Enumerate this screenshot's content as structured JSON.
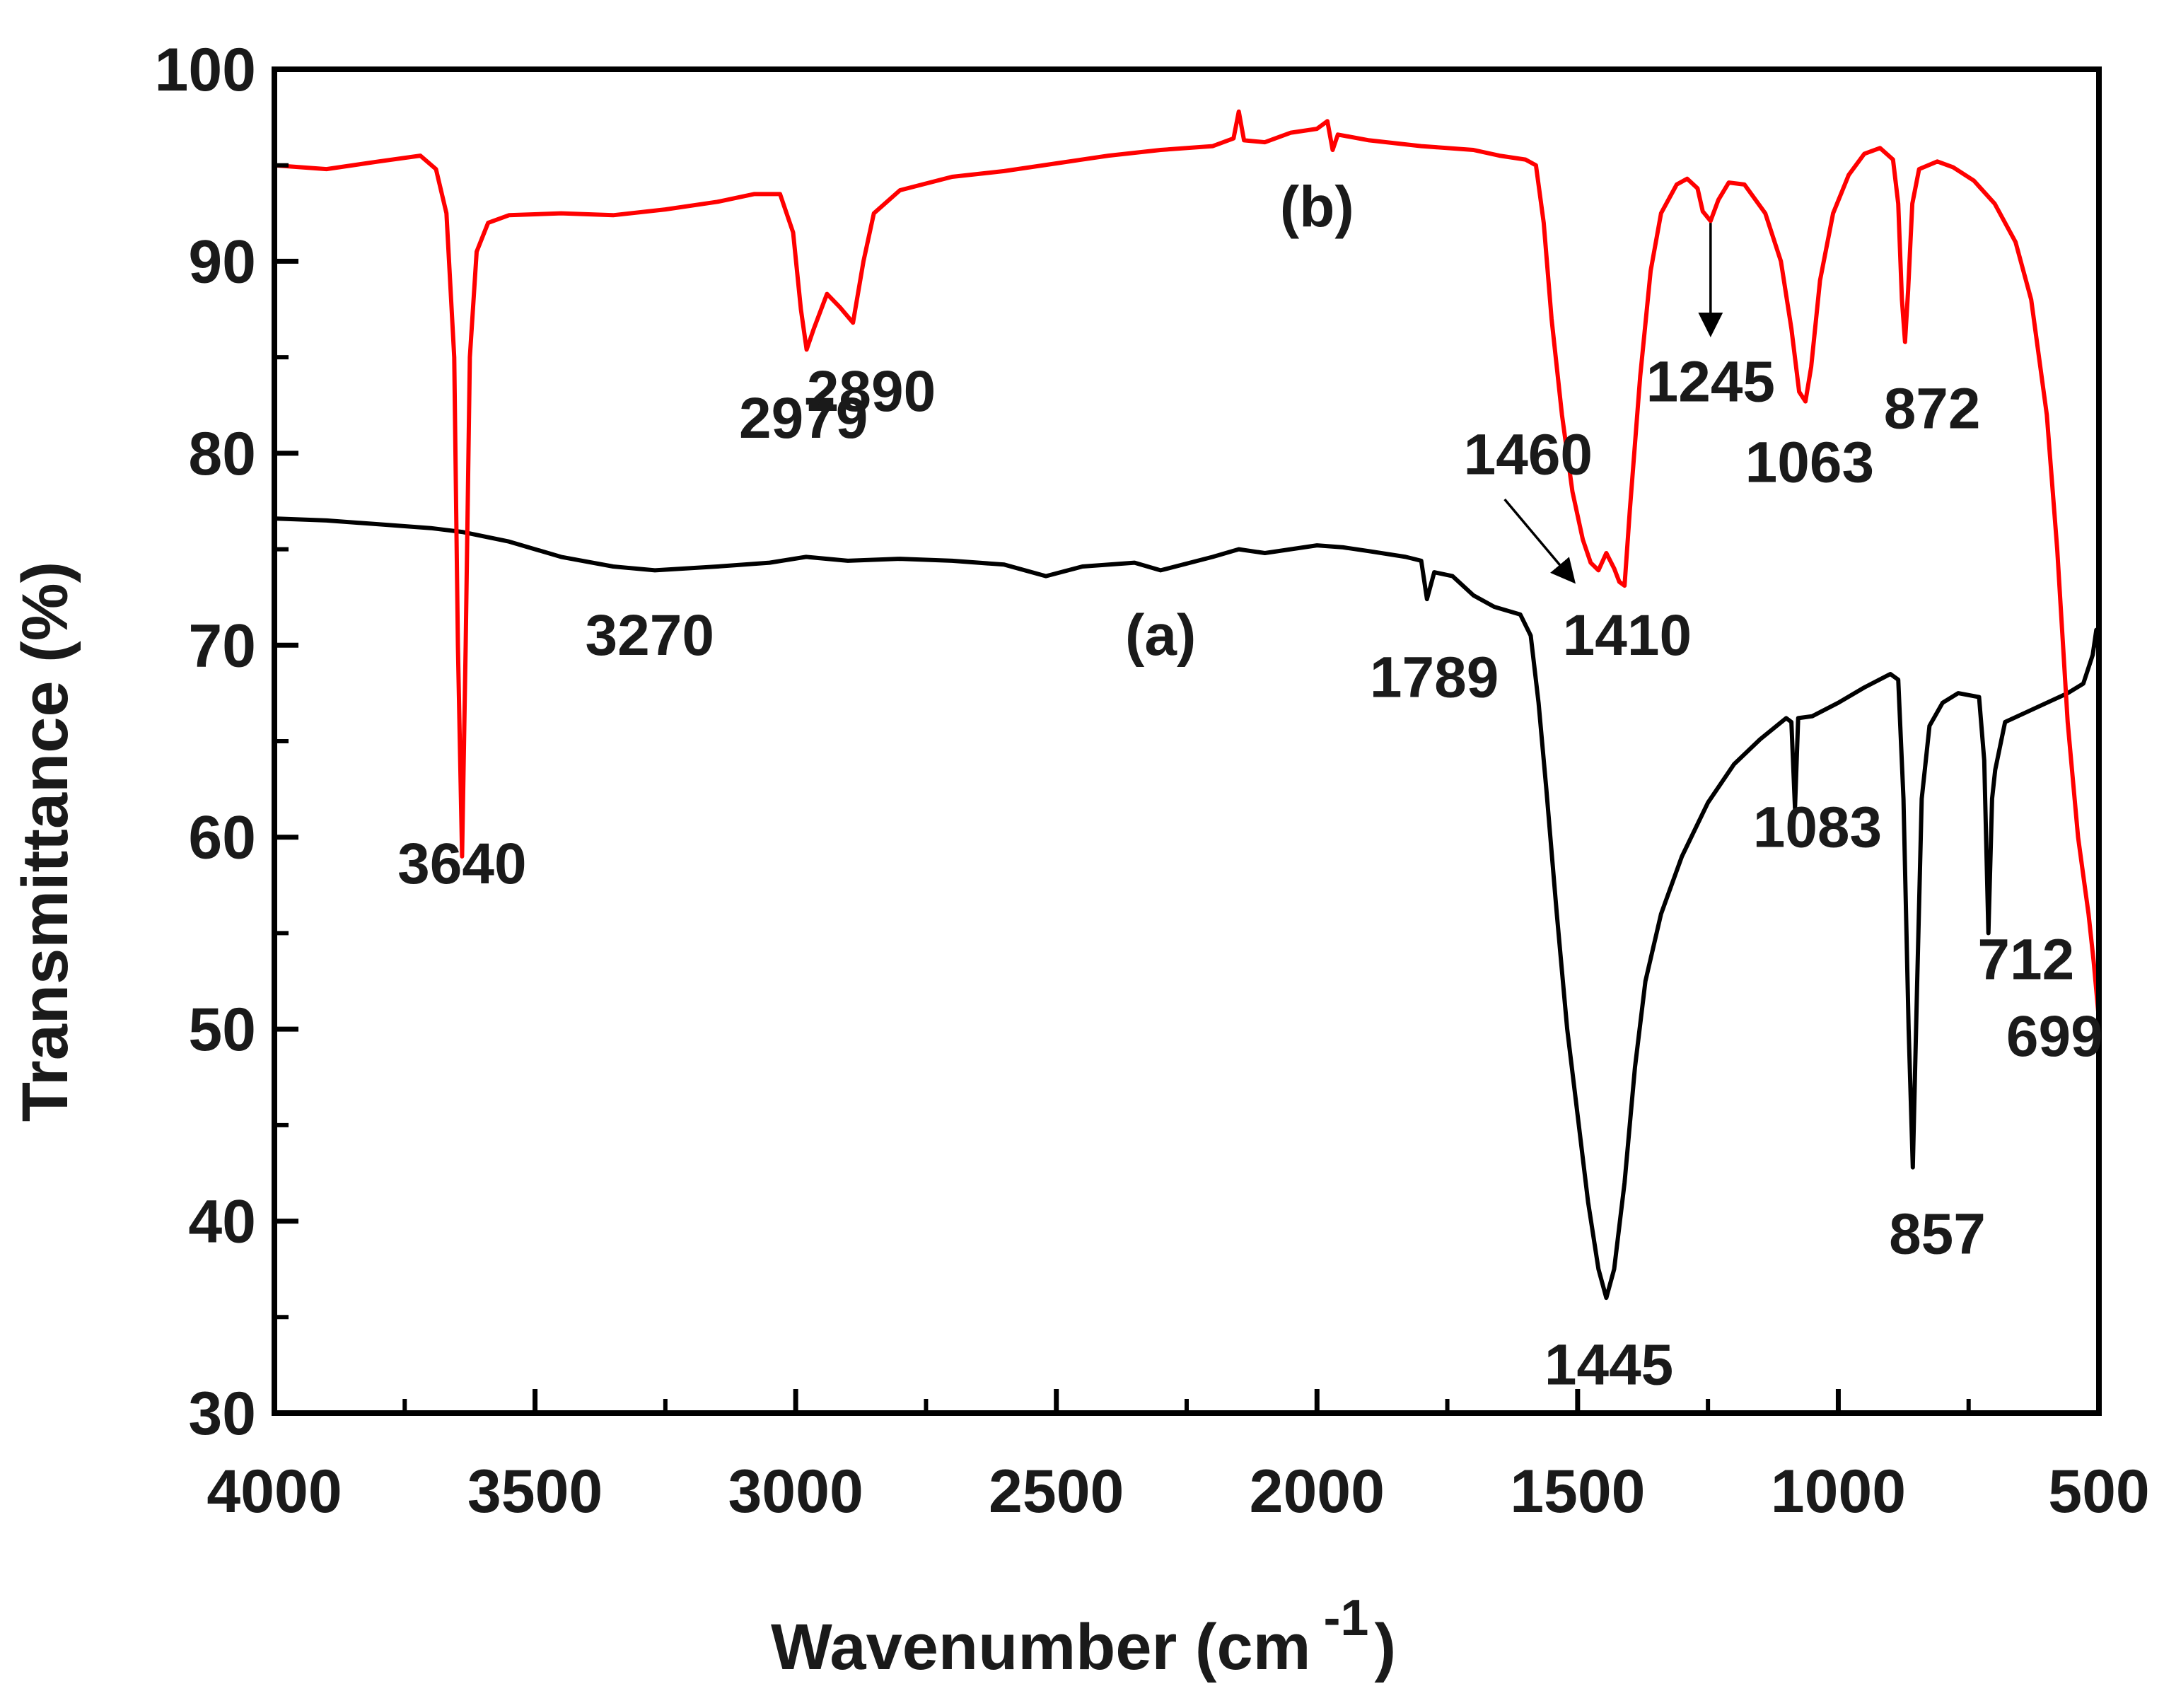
{
  "chart_data": {
    "type": "line",
    "title": "",
    "xlabel": "Wavenumber (cm",
    "xlabel_sup": "-1",
    "xlabel_close": ")",
    "ylabel": "Transmittance (%)",
    "xlim": [
      4000,
      500
    ],
    "ylim": [
      30,
      100
    ],
    "x_ticks": [
      "4000",
      "3500",
      "3000",
      "2500",
      "2000",
      "1500",
      "1000",
      "500"
    ],
    "y_ticks": [
      "30",
      "40",
      "50",
      "60",
      "70",
      "80",
      "90",
      "100"
    ],
    "colors": {
      "a": "#000000",
      "b": "#ff0000",
      "axis": "#000000"
    },
    "series": [
      {
        "name": "(a)",
        "color": "#000000",
        "points": [
          [
            4000,
            76.6
          ],
          [
            3900,
            76.5
          ],
          [
            3800,
            76.3
          ],
          [
            3700,
            76.1
          ],
          [
            3640,
            75.9
          ],
          [
            3550,
            75.4
          ],
          [
            3450,
            74.6
          ],
          [
            3350,
            74.1
          ],
          [
            3270,
            73.9
          ],
          [
            3150,
            74.1
          ],
          [
            3050,
            74.3
          ],
          [
            2980,
            74.6
          ],
          [
            2900,
            74.4
          ],
          [
            2800,
            74.5
          ],
          [
            2700,
            74.4
          ],
          [
            2600,
            74.2
          ],
          [
            2520,
            73.6
          ],
          [
            2450,
            74.1
          ],
          [
            2350,
            74.3
          ],
          [
            2300,
            73.9
          ],
          [
            2200,
            74.6
          ],
          [
            2150,
            75.0
          ],
          [
            2100,
            74.8
          ],
          [
            2000,
            75.2
          ],
          [
            1950,
            75.1
          ],
          [
            1900,
            74.9
          ],
          [
            1830,
            74.6
          ],
          [
            1800,
            74.4
          ],
          [
            1789,
            72.4
          ],
          [
            1775,
            73.8
          ],
          [
            1740,
            73.6
          ],
          [
            1700,
            72.6
          ],
          [
            1660,
            72.0
          ],
          [
            1610,
            71.6
          ],
          [
            1590,
            70.5
          ],
          [
            1575,
            67.0
          ],
          [
            1560,
            62.5
          ],
          [
            1540,
            56.0
          ],
          [
            1520,
            50.0
          ],
          [
            1500,
            45.5
          ],
          [
            1480,
            41.0
          ],
          [
            1460,
            37.5
          ],
          [
            1445,
            36.0
          ],
          [
            1430,
            37.5
          ],
          [
            1410,
            42.0
          ],
          [
            1390,
            48.0
          ],
          [
            1370,
            52.5
          ],
          [
            1340,
            56.0
          ],
          [
            1300,
            59.0
          ],
          [
            1250,
            61.8
          ],
          [
            1200,
            63.8
          ],
          [
            1150,
            65.1
          ],
          [
            1100,
            66.2
          ],
          [
            1090,
            66.0
          ],
          [
            1083,
            61.5
          ],
          [
            1077,
            66.2
          ],
          [
            1050,
            66.3
          ],
          [
            1000,
            67.0
          ],
          [
            950,
            67.8
          ],
          [
            900,
            68.5
          ],
          [
            885,
            68.2
          ],
          [
            875,
            62.0
          ],
          [
            865,
            50.0
          ],
          [
            857,
            42.8
          ],
          [
            849,
            52.0
          ],
          [
            840,
            62.0
          ],
          [
            825,
            65.8
          ],
          [
            800,
            67.0
          ],
          [
            770,
            67.5
          ],
          [
            730,
            67.3
          ],
          [
            720,
            64.0
          ],
          [
            712,
            55.0
          ],
          [
            705,
            62.0
          ],
          [
            699,
            63.5
          ],
          [
            680,
            66.0
          ],
          [
            640,
            66.5
          ],
          [
            600,
            67.0
          ],
          [
            560,
            67.5
          ],
          [
            530,
            68.0
          ],
          [
            512,
            69.5
          ],
          [
            505,
            70.8
          ],
          [
            500,
            69.5
          ]
        ]
      },
      {
        "name": "(b)",
        "color": "#ff0000",
        "points": [
          [
            4000,
            95.0
          ],
          [
            3900,
            94.8
          ],
          [
            3800,
            95.2
          ],
          [
            3720,
            95.5
          ],
          [
            3690,
            94.8
          ],
          [
            3670,
            92.5
          ],
          [
            3655,
            85.0
          ],
          [
            3648,
            70.0
          ],
          [
            3640,
            59.0
          ],
          [
            3633,
            70.0
          ],
          [
            3625,
            85.0
          ],
          [
            3612,
            90.5
          ],
          [
            3590,
            92.0
          ],
          [
            3550,
            92.4
          ],
          [
            3450,
            92.5
          ],
          [
            3350,
            92.4
          ],
          [
            3250,
            92.7
          ],
          [
            3150,
            93.1
          ],
          [
            3080,
            93.5
          ],
          [
            3030,
            93.5
          ],
          [
            3005,
            91.5
          ],
          [
            2990,
            87.5
          ],
          [
            2979,
            85.4
          ],
          [
            2965,
            86.5
          ],
          [
            2940,
            88.3
          ],
          [
            2915,
            87.6
          ],
          [
            2890,
            86.8
          ],
          [
            2870,
            90.0
          ],
          [
            2850,
            92.5
          ],
          [
            2800,
            93.7
          ],
          [
            2700,
            94.4
          ],
          [
            2600,
            94.7
          ],
          [
            2500,
            95.1
          ],
          [
            2400,
            95.5
          ],
          [
            2300,
            95.8
          ],
          [
            2200,
            96.0
          ],
          [
            2160,
            96.4
          ],
          [
            2150,
            97.8
          ],
          [
            2140,
            96.3
          ],
          [
            2100,
            96.2
          ],
          [
            2050,
            96.7
          ],
          [
            2000,
            96.9
          ],
          [
            1980,
            97.3
          ],
          [
            1970,
            95.8
          ],
          [
            1960,
            96.6
          ],
          [
            1900,
            96.3
          ],
          [
            1800,
            96.0
          ],
          [
            1700,
            95.8
          ],
          [
            1650,
            95.5
          ],
          [
            1600,
            95.3
          ],
          [
            1580,
            95.0
          ],
          [
            1565,
            92.0
          ],
          [
            1550,
            87.0
          ],
          [
            1530,
            82.0
          ],
          [
            1510,
            78.0
          ],
          [
            1490,
            75.5
          ],
          [
            1475,
            74.3
          ],
          [
            1460,
            73.9
          ],
          [
            1445,
            74.8
          ],
          [
            1430,
            74.0
          ],
          [
            1420,
            73.3
          ],
          [
            1410,
            73.1
          ],
          [
            1400,
            77.0
          ],
          [
            1380,
            84.0
          ],
          [
            1360,
            89.5
          ],
          [
            1340,
            92.5
          ],
          [
            1310,
            94.0
          ],
          [
            1290,
            94.3
          ],
          [
            1270,
            93.8
          ],
          [
            1260,
            92.6
          ],
          [
            1245,
            92.1
          ],
          [
            1230,
            93.2
          ],
          [
            1210,
            94.1
          ],
          [
            1180,
            94.0
          ],
          [
            1140,
            92.5
          ],
          [
            1110,
            90.0
          ],
          [
            1090,
            86.5
          ],
          [
            1075,
            83.2
          ],
          [
            1063,
            82.7
          ],
          [
            1052,
            84.5
          ],
          [
            1035,
            89.0
          ],
          [
            1010,
            92.5
          ],
          [
            980,
            94.5
          ],
          [
            950,
            95.6
          ],
          [
            920,
            95.9
          ],
          [
            895,
            95.3
          ],
          [
            885,
            93.0
          ],
          [
            878,
            88.0
          ],
          [
            872,
            85.8
          ],
          [
            866,
            88.5
          ],
          [
            858,
            93.0
          ],
          [
            845,
            94.8
          ],
          [
            810,
            95.2
          ],
          [
            780,
            94.9
          ],
          [
            740,
            94.2
          ],
          [
            700,
            93.0
          ],
          [
            660,
            91.0
          ],
          [
            630,
            88.0
          ],
          [
            600,
            82.0
          ],
          [
            580,
            75.0
          ],
          [
            560,
            66.0
          ],
          [
            540,
            60.0
          ],
          [
            520,
            56.0
          ],
          [
            510,
            53.5
          ],
          [
            500,
            50.5
          ]
        ]
      }
    ],
    "annotations": [
      {
        "text": "3640",
        "x": 3640,
        "y": 57.6
      },
      {
        "text": "2979",
        "x": 2985,
        "y": 80.8
      },
      {
        "text": "2890",
        "x": 2855,
        "y": 82.2
      },
      {
        "text": "3270",
        "x": 3280,
        "y": 69.5
      },
      {
        "text": "(a)",
        "x": 2300,
        "y": 69.5
      },
      {
        "text": "(b)",
        "x": 2000,
        "y": 91.8
      },
      {
        "text": "1789",
        "x": 1775,
        "y": 67.3
      },
      {
        "text": "1460",
        "x": 1595,
        "y": 78.9
      },
      {
        "text": "1410",
        "x": 1405,
        "y": 69.5
      },
      {
        "text": "1245",
        "x": 1245,
        "y": 82.7
      },
      {
        "text": "1063",
        "x": 1055,
        "y": 78.5
      },
      {
        "text": "872",
        "x": 820,
        "y": 81.3
      },
      {
        "text": "1083",
        "x": 1040,
        "y": 59.5
      },
      {
        "text": "712",
        "x": 640,
        "y": 52.6
      },
      {
        "text": "699",
        "x": 585,
        "y": 48.6
      },
      {
        "text": "857",
        "x": 810,
        "y": 38.3
      },
      {
        "text": "1445",
        "x": 1440,
        "y": 31.5
      }
    ],
    "arrows": [
      {
        "from": [
          1640,
          77.6
        ],
        "to": [
          1510,
          73.4
        ]
      },
      {
        "from": [
          1245,
          92.0
        ],
        "to": [
          1245,
          86.3
        ]
      }
    ]
  }
}
